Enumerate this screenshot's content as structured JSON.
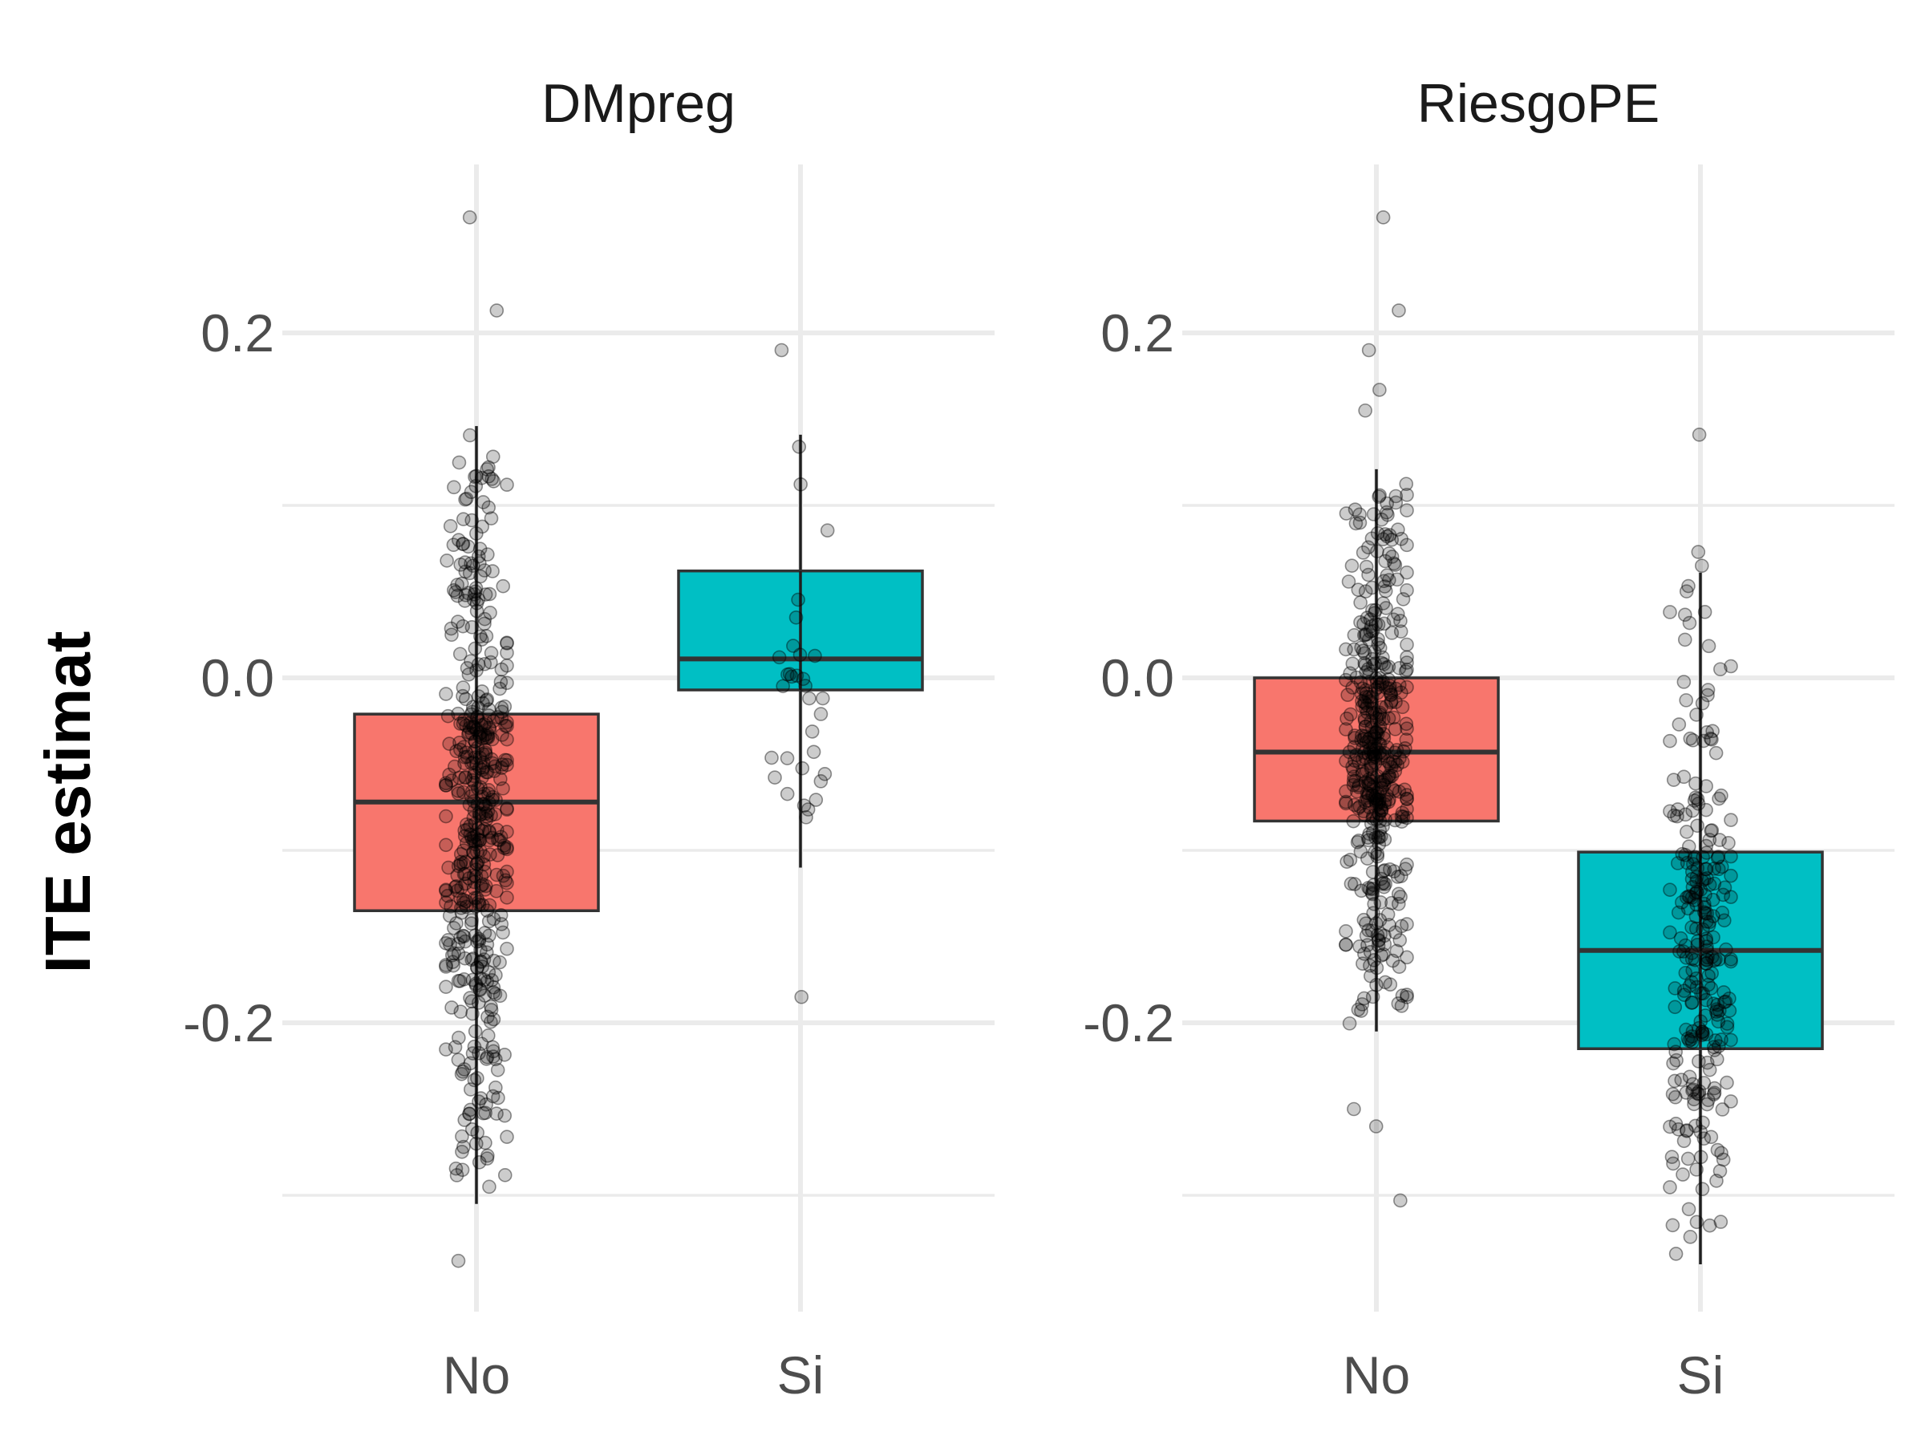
{
  "chart_data": {
    "type": "box",
    "ylabel": "ITE estimat",
    "y_ticks": [
      "-0.2",
      "0.0",
      "0.2"
    ],
    "y_tick_values": [
      -0.2,
      0.0,
      0.2
    ],
    "ylim": [
      -0.37,
      0.3
    ],
    "grid": true,
    "legend": "none",
    "fill_colors": {
      "No": "#f8766d",
      "Si": "#00bfc4"
    },
    "panels": [
      {
        "title": "DMpreg",
        "categories": [
          "No",
          "Si"
        ],
        "boxes": [
          {
            "category": "No",
            "q1": -0.135,
            "median": -0.072,
            "q3": -0.021,
            "whisker_low": -0.305,
            "whisker_high": 0.146,
            "n_points": 470,
            "outliers": [
              0.267,
              0.213,
              -0.338
            ]
          },
          {
            "category": "Si",
            "q1": -0.007,
            "median": 0.011,
            "q3": 0.062,
            "whisker_low": -0.11,
            "whisker_high": 0.141,
            "n_points": 32,
            "outliers": [
              0.19,
              -0.185
            ]
          }
        ]
      },
      {
        "title": "RiesgoPE",
        "categories": [
          "No",
          "Si"
        ],
        "boxes": [
          {
            "category": "No",
            "q1": -0.083,
            "median": -0.043,
            "q3": 0.0,
            "whisker_low": -0.205,
            "whisker_high": 0.121,
            "n_points": 440,
            "outliers": [
              0.267,
              0.213,
              0.19,
              0.167,
              0.155,
              -0.25,
              -0.26,
              -0.303
            ]
          },
          {
            "category": "Si",
            "q1": -0.215,
            "median": -0.158,
            "q3": -0.101,
            "whisker_low": -0.34,
            "whisker_high": 0.061,
            "n_points": 260,
            "outliers": [
              0.141,
              0.073,
              0.065
            ]
          }
        ]
      }
    ]
  }
}
